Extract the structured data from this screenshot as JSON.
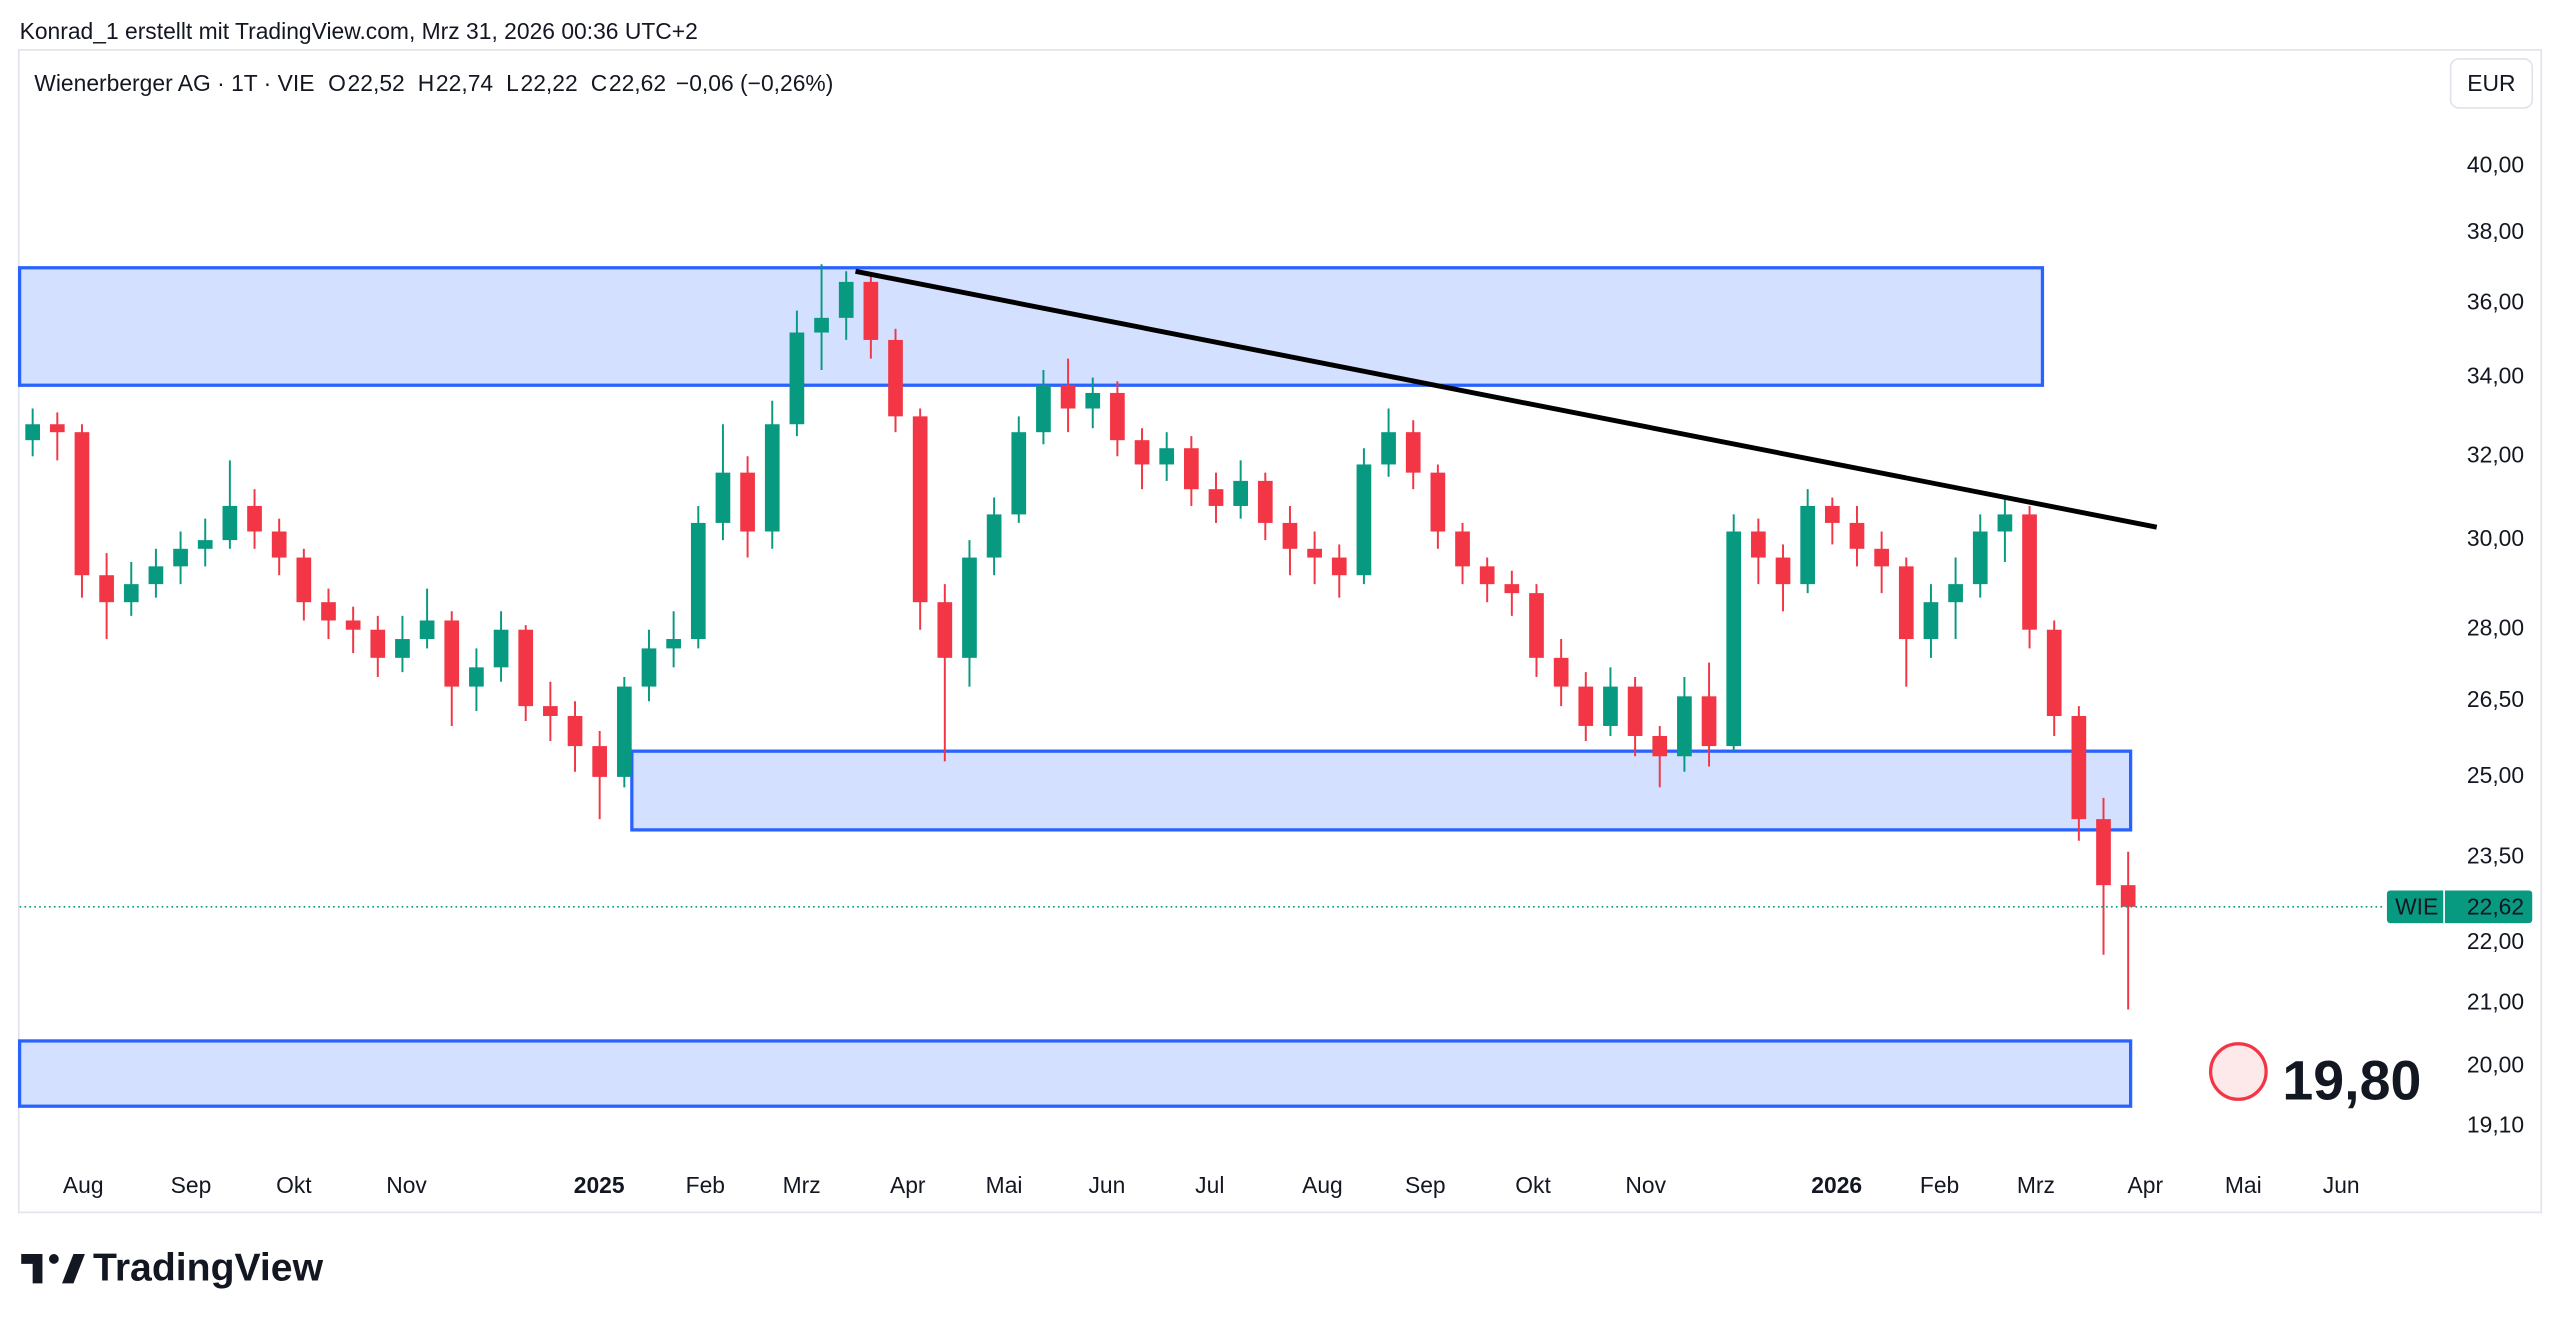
{
  "top_caption": "Konrad_1 erstellt mit TradingView.com, Mrz 31, 2026 00:36 UTC+2",
  "chart_data": {
    "type": "candlestick",
    "title": "Wienerberger AG · 1T · VIE",
    "legend_values": [
      {
        "key": "O",
        "value": "22,52"
      },
      {
        "key": "H",
        "value": "22,74"
      },
      {
        "key": "L",
        "value": "22,22"
      },
      {
        "key": "C",
        "value": "22,62"
      }
    ],
    "change": "−0,06 (−0,26%)",
    "currency": "EUR",
    "log_scale": true,
    "grid": false,
    "ylim": [
      18.74,
      41.9
    ],
    "yticks": [
      {
        "value": 40,
        "label": "40,00"
      },
      {
        "value": 38,
        "label": "38,00"
      },
      {
        "value": 36,
        "label": "36,00"
      },
      {
        "value": 34,
        "label": "34,00"
      },
      {
        "value": 32,
        "label": "32,00"
      },
      {
        "value": 30,
        "label": "30,00"
      },
      {
        "value": 28,
        "label": "28,00"
      },
      {
        "value": 26.5,
        "label": "26,50"
      },
      {
        "value": 25,
        "label": "25,00"
      },
      {
        "value": 23.5,
        "label": "23,50"
      },
      {
        "value": 22,
        "label": "22,00"
      },
      {
        "value": 21,
        "label": "21,00"
      },
      {
        "value": 20,
        "label": "20,00"
      },
      {
        "value": 19.1,
        "label": "19,10"
      }
    ],
    "xticks": [
      "Aug",
      "Sep",
      "Okt",
      "Nov",
      "2025",
      "Feb",
      "Mrz",
      "Apr",
      "Mai",
      "Jun",
      "Jul",
      "Aug",
      "Sep",
      "Okt",
      "Nov",
      "2026",
      "Feb",
      "Mrz",
      "Apr",
      "Mai",
      "Jun"
    ],
    "series": [
      {
        "name": "WIE",
        "up_color": "#089981",
        "down_color": "#f23645",
        "open": [
          32.4,
          32.8,
          32.6,
          29.2,
          28.6,
          29.0,
          29.4,
          29.8,
          30.0,
          30.8,
          30.2,
          29.6,
          28.6,
          28.2,
          28.0,
          27.4,
          27.8,
          28.2,
          26.8,
          27.2,
          28.0,
          26.4,
          26.2,
          25.6,
          25.0,
          26.8,
          27.6,
          27.8,
          30.4,
          31.6,
          30.2,
          32.8,
          35.2,
          35.6,
          36.6,
          35.0,
          33.0,
          28.6,
          27.4,
          29.6,
          30.6,
          32.6,
          33.8,
          33.2,
          33.6,
          32.4,
          31.8,
          32.2,
          31.2,
          30.8,
          31.4,
          30.4,
          29.8,
          29.6,
          29.2,
          31.8,
          32.6,
          31.6,
          30.2,
          29.4,
          29.0,
          28.8,
          27.4,
          26.8,
          26.0,
          26.8,
          25.8,
          25.4,
          26.6,
          25.6,
          30.2,
          29.6,
          29.0,
          30.8,
          30.4,
          29.8,
          29.4,
          27.8,
          28.6,
          29.0,
          30.2,
          30.6,
          28.0,
          26.2,
          24.2,
          23.0
        ],
        "high": [
          33.2,
          33.1,
          32.8,
          29.7,
          29.5,
          29.8,
          30.2,
          30.5,
          31.9,
          31.2,
          30.5,
          29.8,
          28.9,
          28.5,
          28.3,
          28.3,
          28.9,
          28.4,
          27.6,
          28.4,
          28.1,
          26.9,
          26.5,
          25.9,
          27.0,
          28.0,
          28.4,
          30.8,
          32.8,
          32.0,
          33.4,
          35.8,
          37.1,
          36.9,
          36.8,
          35.3,
          33.2,
          29.0,
          30.0,
          31.0,
          33.0,
          34.2,
          34.5,
          34.0,
          33.9,
          32.7,
          32.6,
          32.5,
          31.6,
          31.9,
          31.6,
          30.8,
          30.2,
          29.9,
          32.2,
          33.2,
          32.9,
          31.8,
          30.4,
          29.6,
          29.3,
          29.0,
          27.8,
          27.1,
          27.2,
          27.0,
          26.0,
          27.0,
          27.3,
          30.6,
          30.5,
          29.9,
          31.2,
          31.0,
          30.8,
          30.2,
          29.6,
          29.0,
          29.6,
          30.6,
          31.0,
          30.8,
          28.2,
          26.4,
          24.6,
          23.6
        ],
        "low": [
          32.0,
          31.9,
          28.7,
          27.8,
          28.3,
          28.7,
          29.0,
          29.4,
          29.8,
          29.8,
          29.2,
          28.2,
          27.8,
          27.5,
          27.0,
          27.1,
          27.6,
          26.0,
          26.3,
          26.9,
          26.1,
          25.7,
          25.1,
          24.2,
          24.8,
          26.5,
          27.2,
          27.6,
          30.0,
          29.6,
          29.8,
          32.5,
          34.2,
          35.0,
          34.5,
          32.6,
          28.0,
          25.3,
          26.8,
          29.2,
          30.4,
          32.3,
          32.6,
          32.7,
          32.0,
          31.2,
          31.4,
          30.8,
          30.4,
          30.5,
          30.0,
          29.2,
          29.0,
          28.7,
          29.0,
          31.5,
          31.2,
          29.8,
          29.0,
          28.6,
          28.3,
          27.0,
          26.4,
          25.7,
          25.8,
          25.4,
          24.8,
          25.1,
          25.2,
          25.5,
          29.0,
          28.4,
          28.8,
          29.9,
          29.4,
          28.8,
          26.8,
          27.4,
          27.8,
          28.7,
          29.5,
          27.6,
          25.8,
          23.8,
          21.8,
          20.9
        ],
        "close": [
          32.8,
          32.6,
          29.2,
          28.6,
          29.0,
          29.4,
          29.8,
          30.0,
          30.8,
          30.2,
          29.6,
          28.6,
          28.2,
          28.0,
          27.4,
          27.8,
          28.2,
          26.8,
          27.2,
          28.0,
          26.4,
          26.2,
          25.6,
          25.0,
          26.8,
          27.6,
          27.8,
          30.4,
          31.6,
          30.2,
          32.8,
          35.2,
          35.6,
          36.6,
          35.0,
          33.0,
          28.6,
          27.4,
          29.6,
          30.6,
          32.6,
          33.8,
          33.2,
          33.6,
          32.4,
          31.8,
          32.2,
          31.2,
          30.8,
          31.4,
          30.4,
          29.8,
          29.6,
          29.2,
          31.8,
          32.6,
          31.6,
          30.2,
          29.4,
          29.0,
          28.8,
          27.4,
          26.8,
          26.0,
          26.8,
          25.8,
          25.4,
          26.6,
          25.6,
          30.2,
          29.6,
          29.0,
          30.8,
          30.4,
          29.8,
          29.4,
          27.8,
          28.6,
          29.0,
          30.2,
          30.6,
          28.0,
          26.2,
          24.2,
          23.0,
          22.62
        ]
      }
    ],
    "last_price": {
      "value": 22.62,
      "label": "22,62"
    },
    "zones": [
      {
        "low": 33.8,
        "high": 37.0,
        "color": "#2962ff"
      },
      {
        "low": 24.0,
        "high": 25.5,
        "color": "#2962ff"
      },
      {
        "low": 19.4,
        "high": 20.4,
        "color": "#2962ff"
      }
    ],
    "trendline": {
      "start": 36.9,
      "end": 30.3,
      "color": "#000000"
    },
    "annotation": {
      "value": 19.8,
      "label": "19,80"
    }
  },
  "footer": {
    "brand": "TradingView"
  }
}
